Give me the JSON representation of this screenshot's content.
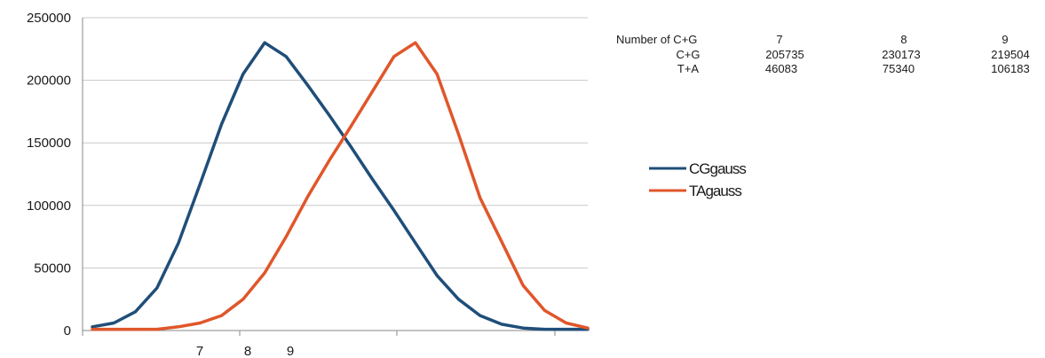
{
  "chart_data": {
    "type": "line",
    "title": "",
    "xlabel": "",
    "ylabel": "",
    "ylim": [
      0,
      250000
    ],
    "yticks": [
      "0",
      "50000",
      "100000",
      "150000",
      "200000",
      "250000"
    ],
    "xtick_labels": [
      "7",
      "8",
      "9"
    ],
    "grid": "horizontal",
    "legend_position": "right",
    "series": [
      {
        "name": "CGgauss",
        "color": "#1f4e79",
        "values": [
          3000,
          6000,
          15000,
          34000,
          70000,
          117000,
          165000,
          205000,
          230000,
          219000,
          196000,
          172000,
          147000,
          121000,
          96000,
          70000,
          44000,
          25000,
          12000,
          5000,
          2000,
          1000,
          1000,
          1000
        ]
      },
      {
        "name": "TAgauss",
        "color": "#e0562a",
        "values": [
          1000,
          1000,
          1000,
          1000,
          3000,
          6000,
          12000,
          25000,
          46000,
          75000,
          107000,
          136000,
          163000,
          191000,
          219000,
          230000,
          205000,
          157000,
          106000,
          71000,
          36000,
          16000,
          6000,
          2000
        ]
      }
    ]
  },
  "table": {
    "header_label": "Number of C+G",
    "columns": [
      "7",
      "8",
      "9"
    ],
    "rows": [
      {
        "label": "C+G",
        "values": [
          "205735",
          "230173",
          "219504"
        ]
      },
      {
        "label": "T+A",
        "values": [
          "46083",
          "75340",
          "106183"
        ]
      }
    ]
  }
}
